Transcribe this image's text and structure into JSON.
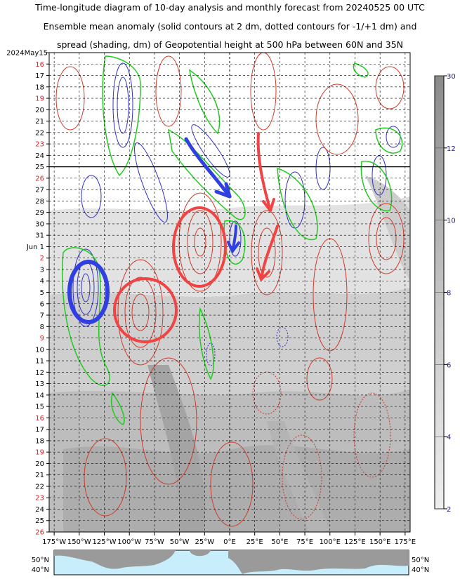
{
  "header": {
    "line1": "Time-longitude diagram of 10-day analysis and monthly forecast from 20240525 00 UTC",
    "line2": "Ensemble mean anomaly (solid contours at 2 dm, dotted contours for -1/+1 dm) and",
    "line3": "spread (shading, dm) of Geopotential height at 500 hPa between 60N and 35N"
  },
  "chart_data": {
    "type": "heatmap",
    "title": "Time-longitude diagram of 10-day analysis and monthly forecast from 20240525 00 UTC",
    "x_axis": {
      "range": [
        -180,
        180
      ],
      "ticks": [
        -175,
        -150,
        -125,
        -100,
        -75,
        -50,
        -25,
        0,
        25,
        50,
        75,
        100,
        125,
        150,
        175
      ],
      "tick_labels": [
        "175°W",
        "150°W",
        "125°W",
        "100°W",
        "75°W",
        "50°W",
        "25°W",
        "0°E",
        "25°E",
        "50°E",
        "75°E",
        "100°E",
        "125°E",
        "150°E",
        "175°E"
      ]
    },
    "y_axis": {
      "start_label": "2024May15",
      "day_labels": [
        "2024May15",
        "16",
        "17",
        "18",
        "19",
        "20",
        "21",
        "22",
        "23",
        "24",
        "25",
        "26",
        "27",
        "28",
        "29",
        "30",
        "31",
        "Jun  1",
        "2",
        "3",
        "4",
        "5",
        "6",
        "7",
        "8",
        "9",
        "10",
        "11",
        "12",
        "13",
        "14",
        "15",
        "16",
        "17",
        "18",
        "19",
        "20",
        "21",
        "22",
        "23",
        "24",
        "25",
        "26"
      ],
      "highlighted": [
        "19",
        "26",
        "2",
        "9",
        "16",
        "23"
      ],
      "highlight_color": "#d42020",
      "analysis_forecast_boundary": "25"
    },
    "colorbar": {
      "levels": [
        2,
        4,
        6,
        8,
        10,
        12,
        30
      ],
      "label_color": "#1a1a8c"
    },
    "contour_colors": {
      "positive": "#d23a2a",
      "negative": "#3030c8",
      "zero": "#1fcc1f"
    },
    "annotations": {
      "blue_arrows": 2,
      "red_arrows": 2,
      "blue_circles": 1,
      "red_circles": 2
    },
    "map_strip": {
      "lat_labels": [
        "50°N",
        "40°N"
      ],
      "ocean_color": "#c8eefc",
      "land_color": "#9a9a9a"
    }
  }
}
